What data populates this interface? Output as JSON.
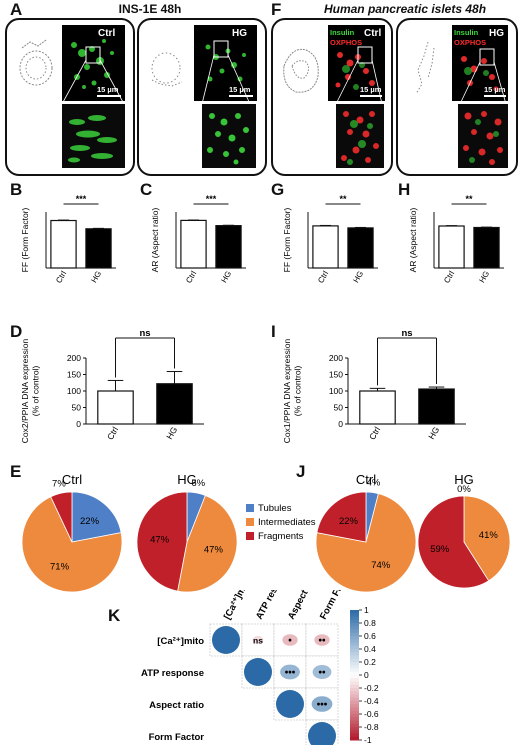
{
  "panels": {
    "A": {
      "letter": "A",
      "title": "INS-1E 48h",
      "ctrl_label": "Ctrl",
      "hg_label": "HG",
      "scale": "15 µm"
    },
    "F": {
      "letter": "F",
      "title": "Human pancreatic islets 48h",
      "ctrl_label": "Ctrl",
      "hg_label": "HG",
      "scale": "15 µm",
      "stain1": "Insulin",
      "stain2": "OXPHOS"
    }
  },
  "colors": {
    "green_stain": "#3ddc3d",
    "red_stain": "#ff2a2a",
    "tubules": "#4f7fc6",
    "intermediates": "#ee8a3e",
    "fragments": "#c0202a",
    "corr_pos": "#2b6aa6",
    "corr_neg": "#b2182b"
  },
  "chart_data": [
    {
      "panel": "B",
      "type": "bar",
      "categories": [
        "Ctrl",
        "HG"
      ],
      "values": [
        2.12,
        1.75
      ],
      "errors": [
        0.02,
        0.02
      ],
      "fills": [
        "white",
        "black"
      ],
      "ylabel": "FF (Form Factor)",
      "ylim": [
        0,
        2.5
      ],
      "significance": "***"
    },
    {
      "panel": "C",
      "type": "bar",
      "categories": [
        "Ctrl",
        "HG"
      ],
      "values": [
        2.55,
        2.27
      ],
      "errors": [
        0.02,
        0.02
      ],
      "fills": [
        "white",
        "black"
      ],
      "ylabel": "AR (Aspect ratio)",
      "ylim": [
        0,
        3.0
      ],
      "significance": "***"
    },
    {
      "panel": "G",
      "type": "bar",
      "categories": [
        "Ctrl",
        "HG"
      ],
      "values": [
        1.88,
        1.79
      ],
      "errors": [
        0.02,
        0.02
      ],
      "fills": [
        "white",
        "black"
      ],
      "ylabel": "FF (Form Factor)",
      "ylim": [
        0,
        2.5
      ],
      "significance": "**"
    },
    {
      "panel": "H",
      "type": "bar",
      "categories": [
        "Ctrl",
        "HG"
      ],
      "values": [
        2.25,
        2.17
      ],
      "errors": [
        0.02,
        0.02
      ],
      "fills": [
        "white",
        "black"
      ],
      "ylabel": "AR (Aspect ratio)",
      "ylim": [
        0,
        3.0
      ],
      "significance": "**"
    },
    {
      "panel": "D",
      "type": "bar",
      "categories": [
        "Ctrl",
        "HG"
      ],
      "values": [
        100,
        122
      ],
      "errors": [
        32,
        37
      ],
      "fills": [
        "white",
        "black"
      ],
      "ylabel": "Cox2/PPIA DNA expression (% of control)",
      "yticks": [
        0,
        50,
        100,
        150,
        200
      ],
      "ylim": [
        0,
        200
      ],
      "significance": "ns"
    },
    {
      "panel": "I",
      "type": "bar",
      "categories": [
        "Ctrl",
        "HG"
      ],
      "values": [
        100,
        106
      ],
      "errors": [
        8,
        6
      ],
      "fills": [
        "white",
        "black"
      ],
      "ylabel": "Cox1/PPIA DNA expression (% of control)",
      "yticks": [
        0,
        50,
        100,
        150,
        200
      ],
      "ylim": [
        0,
        200
      ],
      "significance": "ns"
    },
    {
      "panel": "E",
      "type": "pie",
      "title": "Ctrl",
      "categories": [
        "Tubules",
        "Intermediates",
        "Fragments"
      ],
      "values": [
        22,
        71,
        7
      ],
      "labels": [
        "22%",
        "71%",
        "7%"
      ]
    },
    {
      "panel": "E",
      "type": "pie",
      "title": "HG",
      "categories": [
        "Tubules",
        "Intermediates",
        "Fragments"
      ],
      "values": [
        6,
        47,
        47
      ],
      "labels": [
        "6%",
        "47%",
        "47%"
      ]
    },
    {
      "panel": "J",
      "type": "pie",
      "title": "Ctrl",
      "categories": [
        "Tubules",
        "Intermediates",
        "Fragments"
      ],
      "values": [
        4,
        74,
        22
      ],
      "labels": [
        "4%",
        "74%",
        "22%"
      ]
    },
    {
      "panel": "J",
      "type": "pie",
      "title": "HG",
      "categories": [
        "Tubules",
        "Intermediates",
        "Fragments"
      ],
      "values": [
        0,
        41,
        59
      ],
      "labels": [
        "0%",
        "41%",
        "59%"
      ]
    },
    {
      "panel": "K",
      "type": "heatmap",
      "variables": [
        "[Ca²⁺]mito",
        "ATP response",
        "Aspect ratio",
        "Form Factor"
      ],
      "correlations": [
        [
          1,
          -0.15,
          -0.3,
          -0.3
        ],
        [
          -0.15,
          1,
          0.5,
          0.45
        ],
        [
          -0.3,
          0.5,
          1,
          0.55
        ],
        [
          -0.3,
          0.45,
          0.55,
          1
        ]
      ],
      "significance": [
        [
          "",
          "ns",
          "•",
          "••"
        ],
        [
          "",
          "",
          "•••",
          "••"
        ],
        [
          "",
          "",
          "",
          "•••"
        ],
        [
          "",
          "",
          "",
          ""
        ]
      ],
      "scale_ticks": [
        "1",
        "0.8",
        "0.6",
        "0.4",
        "0.2",
        "0",
        "-0.2",
        "-0.4",
        "-0.6",
        "-0.8",
        "-1"
      ],
      "scale_range": [
        -1,
        1
      ]
    }
  ],
  "letters": {
    "B": "B",
    "C": "C",
    "D": "D",
    "E": "E",
    "G": "G",
    "H": "H",
    "I": "I",
    "J": "J",
    "K": "K"
  },
  "legend": {
    "tubules": "Tubules",
    "intermediates": "Intermediates",
    "fragments": "Fragments"
  }
}
